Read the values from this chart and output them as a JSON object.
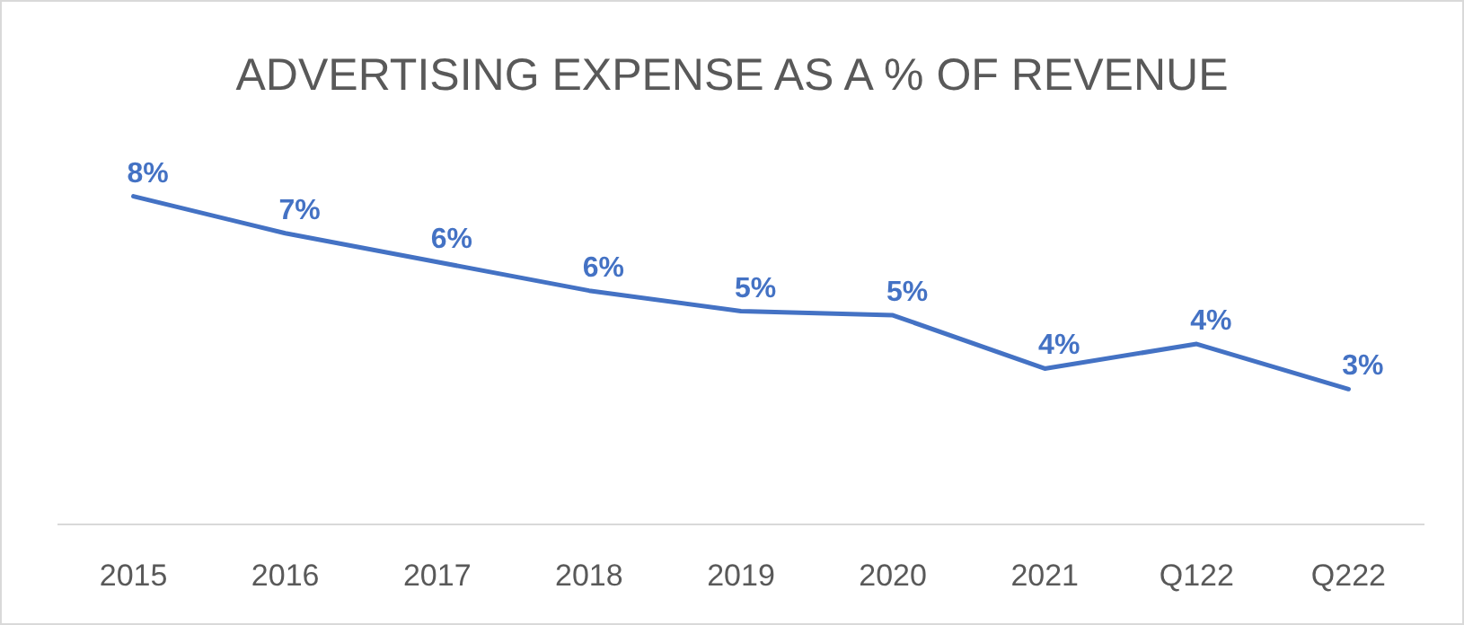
{
  "chart_data": {
    "type": "line",
    "title": "ADVERTISING EXPENSE AS A % OF REVENUE",
    "categories": [
      "2015",
      "2016",
      "2017",
      "2018",
      "2019",
      "2020",
      "2021",
      "Q122",
      "Q222"
    ],
    "series": [
      {
        "color": "#4472c4",
        "values": [
          8.0,
          7.1,
          6.4,
          5.7,
          5.2,
          5.1,
          3.8,
          4.4,
          3.3
        ],
        "value_labels": [
          "8%",
          "7%",
          "6%",
          "6%",
          "5%",
          "5%",
          "4%",
          "4%",
          "3%"
        ]
      }
    ],
    "marker": "none",
    "line_style": "solid"
  }
}
